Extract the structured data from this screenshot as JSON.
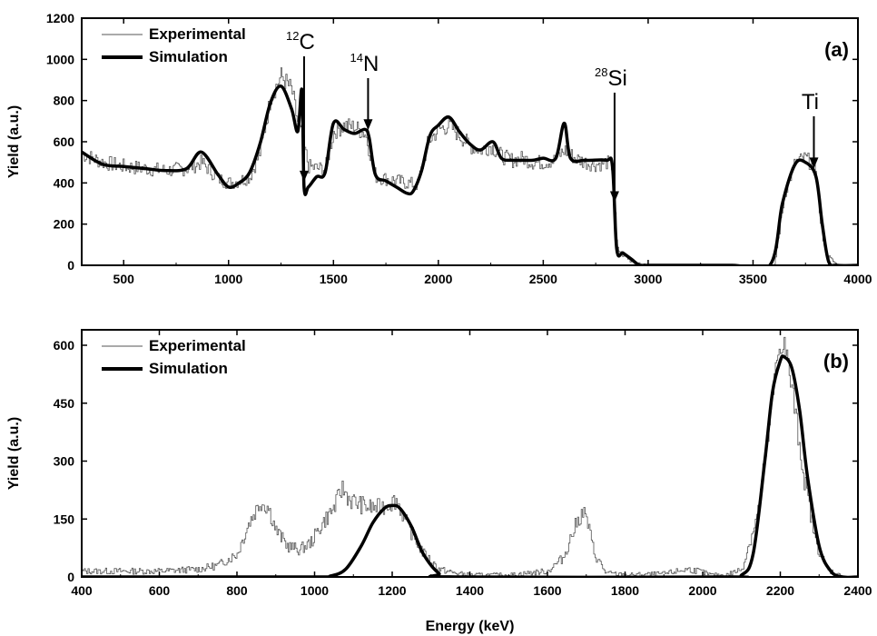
{
  "chart_data": [
    {
      "type": "line",
      "panel_label": "(a)",
      "xlabel": "",
      "ylabel": "Yield (a.u.)",
      "xlim": [
        300,
        4000
      ],
      "ylim": [
        0,
        1200
      ],
      "xticks": [
        500,
        1000,
        1500,
        2000,
        2500,
        3000,
        3500,
        4000
      ],
      "yticks": [
        0,
        200,
        400,
        600,
        800,
        1000,
        1200
      ],
      "legend": "top-left",
      "grid": false,
      "series": [
        {
          "name": "Experimental",
          "style": "thin-step-noisy",
          "x": [
            300,
            400,
            500,
            600,
            700,
            800,
            870,
            950,
            1000,
            1050,
            1100,
            1150,
            1200,
            1250,
            1300,
            1330,
            1350,
            1380,
            1420,
            1460,
            1500,
            1550,
            1600,
            1650,
            1700,
            1750,
            1800,
            1850,
            1900,
            1950,
            2000,
            2050,
            2100,
            2150,
            2200,
            2250,
            2300,
            2350,
            2400,
            2450,
            2500,
            2550,
            2600,
            2650,
            2700,
            2750,
            2800,
            2830,
            2850,
            2880,
            2920,
            2960,
            3000,
            3400,
            3600,
            3650,
            3700,
            3750,
            3800,
            3820,
            3850,
            3900,
            4000
          ],
          "y": [
            540,
            500,
            480,
            470,
            460,
            470,
            500,
            420,
            400,
            410,
            430,
            550,
            820,
            920,
            850,
            680,
            620,
            480,
            470,
            470,
            650,
            680,
            670,
            640,
            430,
            420,
            410,
            400,
            390,
            600,
            660,
            680,
            630,
            580,
            560,
            580,
            530,
            510,
            520,
            500,
            500,
            510,
            560,
            520,
            500,
            490,
            500,
            480,
            80,
            50,
            20,
            5,
            0,
            0,
            0,
            350,
            500,
            520,
            470,
            200,
            50,
            0,
            0
          ]
        },
        {
          "name": "Simulation",
          "style": "thick-smooth",
          "x": [
            300,
            400,
            500,
            600,
            700,
            800,
            870,
            950,
            1000,
            1050,
            1100,
            1150,
            1200,
            1250,
            1300,
            1330,
            1350,
            1360,
            1380,
            1420,
            1460,
            1500,
            1550,
            1600,
            1650,
            1670,
            1700,
            1750,
            1800,
            1850,
            1880,
            1920,
            1960,
            2000,
            2050,
            2100,
            2150,
            2200,
            2260,
            2300,
            2350,
            2400,
            2450,
            2500,
            2560,
            2600,
            2630,
            2700,
            2800,
            2830,
            2850,
            2880,
            2920,
            2960,
            3000,
            3400,
            3580,
            3640,
            3700,
            3750,
            3800,
            3830,
            3860,
            3900,
            4000
          ],
          "y": [
            550,
            490,
            480,
            470,
            460,
            470,
            550,
            440,
            380,
            400,
            450,
            590,
            790,
            870,
            760,
            650,
            850,
            380,
            380,
            430,
            450,
            690,
            660,
            640,
            660,
            620,
            440,
            410,
            380,
            350,
            360,
            460,
            630,
            680,
            720,
            650,
            590,
            560,
            600,
            520,
            510,
            510,
            510,
            520,
            520,
            690,
            520,
            510,
            510,
            480,
            80,
            60,
            30,
            0,
            0,
            0,
            0,
            300,
            490,
            500,
            430,
            200,
            20,
            0,
            0
          ]
        }
      ],
      "annotations": [
        {
          "sup": "12",
          "label": "C",
          "x": 1360
        },
        {
          "sup": "14",
          "label": "N",
          "x": 1665
        },
        {
          "sup": "28",
          "label": "Si",
          "x": 2840
        },
        {
          "sup": "",
          "label": "Ti",
          "x": 3790
        }
      ]
    },
    {
      "type": "line",
      "panel_label": "(b)",
      "xlabel": "Energy (keV)",
      "ylabel": "Yield (a.u.)",
      "xlim": [
        400,
        2400
      ],
      "ylim": [
        0,
        640
      ],
      "xticks": [
        400,
        600,
        800,
        1000,
        1200,
        1400,
        1600,
        1800,
        2000,
        2200,
        2400
      ],
      "yticks": [
        0,
        150,
        300,
        450,
        600
      ],
      "legend": "top-left",
      "grid": false,
      "series": [
        {
          "name": "Experimental",
          "style": "thin-step-noisy",
          "x": [
            400,
            500,
            600,
            700,
            750,
            800,
            830,
            860,
            880,
            900,
            930,
            960,
            990,
            1020,
            1050,
            1070,
            1090,
            1110,
            1140,
            1170,
            1190,
            1210,
            1240,
            1280,
            1320,
            1360,
            1400,
            1500,
            1600,
            1640,
            1670,
            1690,
            1700,
            1720,
            1750,
            1800,
            1900,
            1960,
            1990,
            2020,
            2060,
            2100,
            2140,
            2170,
            2190,
            2200,
            2210,
            2230,
            2260,
            2290,
            2320,
            2360,
            2400
          ],
          "y": [
            15,
            15,
            15,
            20,
            30,
            60,
            140,
            195,
            180,
            120,
            80,
            70,
            90,
            140,
            180,
            230,
            200,
            190,
            180,
            180,
            190,
            200,
            130,
            60,
            20,
            10,
            5,
            5,
            15,
            50,
            130,
            170,
            150,
            60,
            10,
            5,
            8,
            20,
            15,
            5,
            5,
            20,
            160,
            380,
            560,
            610,
            600,
            480,
            260,
            90,
            20,
            0,
            0
          ]
        },
        {
          "name": "Simulation",
          "style": "thick-gaussian",
          "x": [
            400,
            1000,
            1040,
            1080,
            1120,
            1150,
            1180,
            1200,
            1220,
            1250,
            1280,
            1320,
            1360,
            2050,
            2100,
            2130,
            2160,
            2180,
            2200,
            2210,
            2230,
            2250,
            2270,
            2300,
            2330,
            2360,
            2400
          ],
          "y": [
            0,
            0,
            2,
            20,
            80,
            140,
            178,
            185,
            178,
            130,
            60,
            10,
            0,
            0,
            5,
            60,
            300,
            480,
            560,
            570,
            540,
            430,
            260,
            80,
            15,
            0,
            0
          ]
        }
      ]
    }
  ]
}
